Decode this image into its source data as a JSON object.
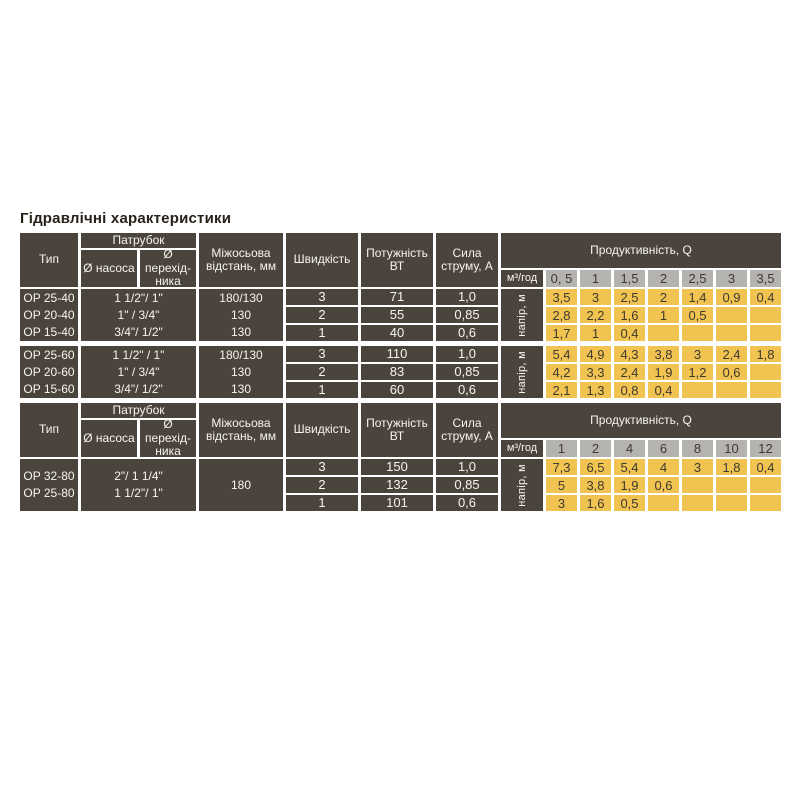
{
  "title": "Гідравлічні характеристики",
  "colors": {
    "dark_cell": "#4a443c",
    "yellow_cell": "#f1c350",
    "gray_cell": "#b5b3af",
    "light_text": "#f7f4ee",
    "dark_text": "#3f3a31"
  },
  "tables": [
    {
      "name": "pump-table-op-40-60",
      "header": {
        "type": "Тип",
        "branch_pipe": "Патрубок",
        "pump_diameter": "Ø насоса",
        "adapter_diameter": "Ø перехід-ника",
        "axle_distance": "Міжосьова відстань, мм",
        "speed": "Швидкість",
        "power": "Потужність ВТ",
        "current": "Сила струму, А",
        "productivity": "Продуктивність, Q",
        "flow_unit": "м³/год",
        "flow_values": [
          "0, 5",
          "1",
          "1,5",
          "2",
          "2,5",
          "3",
          "3,5"
        ],
        "head_label": "напір, м"
      },
      "groups": [
        {
          "types": [
            "OP 25-40",
            "OP 20-40",
            "OP 15-40"
          ],
          "branch_pipes": [
            "1 1/2\"/ 1\"",
            "1\" / 3/4\"",
            "3/4\"/ 1/2\""
          ],
          "axle_distances": [
            "180/130",
            "130",
            "130"
          ],
          "rows": [
            {
              "speed": "3",
              "power": "71",
              "current": "1,0",
              "heads": [
                "3,5",
                "3",
                "2,5",
                "2",
                "1,4",
                "0,9",
                "0,4"
              ]
            },
            {
              "speed": "2",
              "power": "55",
              "current": "0,85",
              "heads": [
                "2,8",
                "2,2",
                "1,6",
                "1",
                "0,5",
                "",
                ""
              ]
            },
            {
              "speed": "1",
              "power": "40",
              "current": "0,6",
              "heads": [
                "1,7",
                "1",
                "0,4",
                "",
                "",
                "",
                ""
              ]
            }
          ]
        },
        {
          "types": [
            "OP 25-60",
            "OP 20-60",
            "OP 15-60"
          ],
          "branch_pipes": [
            "1 1/2\" / 1\"",
            "1\" / 3/4\"",
            "3/4\"/ 1/2\""
          ],
          "axle_distances": [
            "180/130",
            "130",
            "130"
          ],
          "rows": [
            {
              "speed": "3",
              "power": "110",
              "current": "1,0",
              "heads": [
                "5,4",
                "4,9",
                "4,3",
                "3,8",
                "3",
                "2,4",
                "1,8"
              ]
            },
            {
              "speed": "2",
              "power": "83",
              "current": "0,85",
              "heads": [
                "4,2",
                "3,3",
                "2,4",
                "1,9",
                "1,2",
                "0,6",
                ""
              ]
            },
            {
              "speed": "1",
              "power": "60",
              "current": "0,6",
              "heads": [
                "2,1",
                "1,3",
                "0,8",
                "0,4",
                "",
                "",
                ""
              ]
            }
          ]
        }
      ]
    },
    {
      "name": "pump-table-op-80",
      "header": {
        "type": "Тип",
        "branch_pipe": "Патрубок",
        "pump_diameter": "Ø насоса",
        "adapter_diameter": "Ø перехід-ника",
        "axle_distance": "Міжосьова відстань, мм",
        "speed": "Швидкість",
        "power": "Потужність ВТ",
        "current": "Сила струму, А",
        "productivity": "Продуктивність, Q",
        "flow_unit": "м³/год",
        "flow_values": [
          "1",
          "2",
          "4",
          "6",
          "8",
          "10",
          "12"
        ],
        "head_label": "напір, м"
      },
      "groups": [
        {
          "types": [
            "OP 32-80",
            "OP 25-80"
          ],
          "branch_pipes": [
            "2\"/ 1 1/4\"",
            "1 1/2\"/ 1\""
          ],
          "axle_distances": [
            "180"
          ],
          "rows": [
            {
              "speed": "3",
              "power": "150",
              "current": "1,0",
              "heads": [
                "7,3",
                "6,5",
                "5,4",
                "4",
                "3",
                "1,8",
                "0,4"
              ]
            },
            {
              "speed": "2",
              "power": "132",
              "current": "0,85",
              "heads": [
                "5",
                "3,8",
                "1,9",
                "0,6",
                "",
                "",
                ""
              ]
            },
            {
              "speed": "1",
              "power": "101",
              "current": "0,6",
              "heads": [
                "3",
                "1,6",
                "0,5",
                "",
                "",
                "",
                ""
              ]
            }
          ]
        }
      ]
    }
  ]
}
